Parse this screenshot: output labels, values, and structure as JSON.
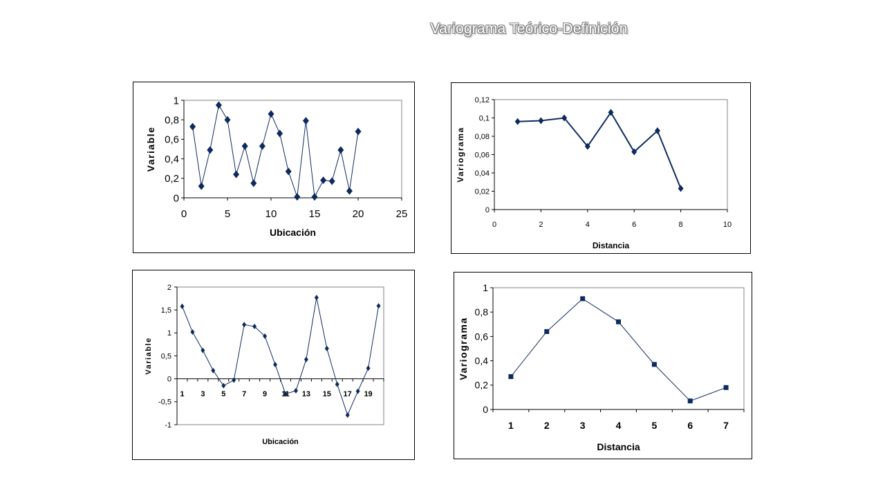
{
  "title": "Variograma Teórico-Definición",
  "colors": {
    "series": "#0d2a5e",
    "axis": "#000000",
    "plot_border": "#808080",
    "background": "#ffffff"
  },
  "chart_data": [
    {
      "type": "line",
      "marker": "diamond",
      "xlabel": "Ubicación",
      "ylabel": "Variable",
      "xlim": [
        0,
        25
      ],
      "ylim": [
        0,
        1
      ],
      "xticks": [
        "0",
        "5",
        "10",
        "15",
        "20",
        "25"
      ],
      "yticks": [
        "0",
        "0,2",
        "0,4",
        "0,6",
        "0,8",
        "1"
      ],
      "x": [
        1,
        2,
        3,
        4,
        5,
        6,
        7,
        8,
        9,
        10,
        11,
        12,
        13,
        14,
        15,
        16,
        17,
        18,
        19,
        20
      ],
      "y": [
        0.73,
        0.12,
        0.49,
        0.95,
        0.8,
        0.24,
        0.53,
        0.15,
        0.53,
        0.86,
        0.66,
        0.27,
        0.01,
        0.79,
        0.01,
        0.18,
        0.17,
        0.49,
        0.07,
        0.68
      ]
    },
    {
      "type": "line",
      "marker": "diamond",
      "xlabel": "Distancia",
      "ylabel": "Variograma",
      "xlim": [
        0,
        10
      ],
      "ylim": [
        0,
        0.12
      ],
      "xticks": [
        "0",
        "2",
        "4",
        "6",
        "8",
        "10"
      ],
      "yticks": [
        "0",
        "0,02",
        "0,04",
        "0,06",
        "0,08",
        "0,1",
        "0,12"
      ],
      "x": [
        1,
        2,
        3,
        4,
        5,
        6,
        7,
        8
      ],
      "y": [
        0.096,
        0.097,
        0.1,
        0.069,
        0.106,
        0.063,
        0.086,
        0.023
      ]
    },
    {
      "type": "line",
      "marker": "diamond",
      "xlabel": "Ubicación",
      "ylabel": "Variable",
      "xlim": [
        0.5,
        20.5
      ],
      "ylim": [
        -1,
        2
      ],
      "xticks": [
        "1",
        "3",
        "5",
        "7",
        "9",
        "11",
        "13",
        "15",
        "17",
        "19"
      ],
      "yticks": [
        "-1",
        "-0,5",
        "0",
        "0,5",
        "1",
        "1,5",
        "2"
      ],
      "x": [
        1,
        2,
        3,
        4,
        5,
        6,
        7,
        8,
        9,
        10,
        11,
        12,
        13,
        14,
        15,
        16,
        17,
        18,
        19,
        20
      ],
      "y": [
        1.58,
        1.02,
        0.62,
        0.18,
        -0.15,
        -0.03,
        1.18,
        1.14,
        0.93,
        0.31,
        -0.33,
        -0.26,
        0.42,
        1.77,
        0.66,
        -0.12,
        -0.79,
        -0.27,
        0.23,
        1.59
      ]
    },
    {
      "type": "line",
      "marker": "square",
      "xlabel": "Distancia",
      "ylabel": "Variograma",
      "xlim": [
        0.5,
        7.5
      ],
      "ylim": [
        0,
        1
      ],
      "xticks": [
        "1",
        "2",
        "3",
        "4",
        "5",
        "6",
        "7"
      ],
      "yticks": [
        "0",
        "0,2",
        "0,4",
        "0,6",
        "0,8",
        "1"
      ],
      "x": [
        1,
        2,
        3,
        4,
        5,
        6,
        7
      ],
      "y": [
        0.27,
        0.64,
        0.91,
        0.72,
        0.37,
        0.07,
        0.18
      ]
    }
  ]
}
